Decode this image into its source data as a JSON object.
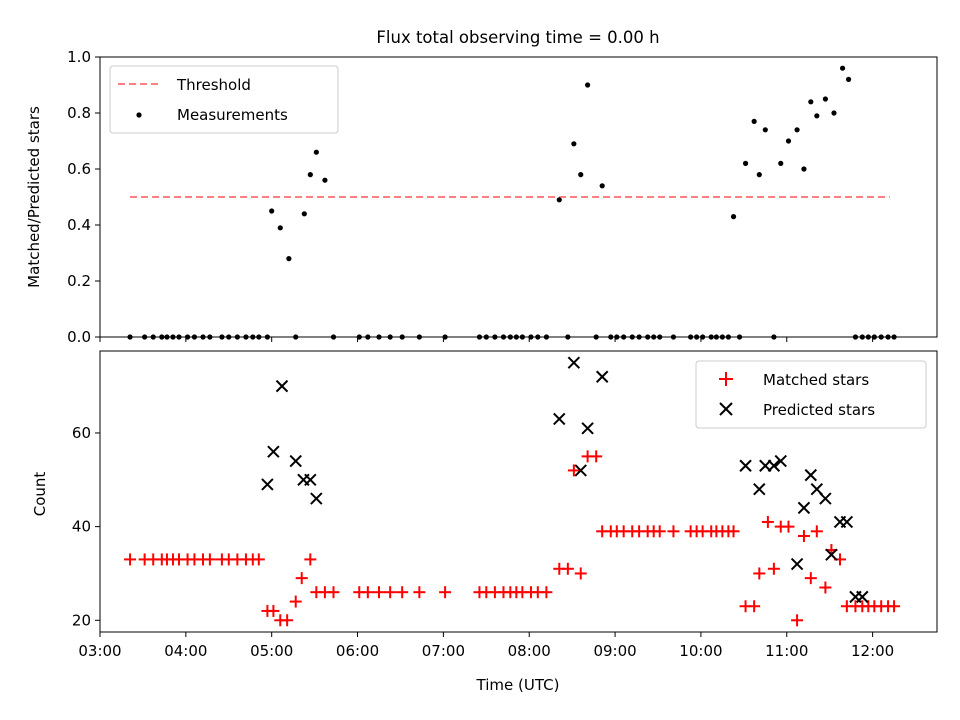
{
  "title": "Flux total observing time = 0.00 h",
  "colors": {
    "threshold": "#ff8080",
    "measurement": "#000000",
    "matched": "#ff0000",
    "predicted": "#000000",
    "axis": "#000000"
  },
  "chart_data": [
    {
      "type": "scatter",
      "ylabel": "Matched/Predicted stars",
      "xlabel": "",
      "xlim": [
        3.0,
        12.75
      ],
      "ylim": [
        0.0,
        1.0
      ],
      "y_ticks": [
        0.0,
        0.2,
        0.4,
        0.6,
        0.8,
        1.0
      ],
      "y_tick_labels": [
        "0.0",
        "0.2",
        "0.4",
        "0.6",
        "0.8",
        "1.0"
      ],
      "x_ticks": [
        3,
        4,
        5,
        6,
        7,
        8,
        9,
        10,
        11,
        12
      ],
      "x_tick_labels": [
        "",
        "",
        "",
        "",
        "",
        "",
        "",
        "",
        "",
        ""
      ],
      "legend": {
        "position": "upper-left",
        "entries": [
          {
            "label": "Threshold",
            "marker": "dashed-line"
          },
          {
            "label": "Measurements",
            "marker": "dot"
          }
        ]
      },
      "threshold": {
        "name": "Threshold",
        "y": 0.5,
        "x": [
          3.35,
          12.2
        ]
      },
      "series": [
        {
          "name": "Measurements",
          "x": [
            3.35,
            3.52,
            3.62,
            3.72,
            3.78,
            3.85,
            3.92,
            4.02,
            4.1,
            4.2,
            4.28,
            4.42,
            4.5,
            4.6,
            4.7,
            4.78,
            4.85,
            4.95,
            5.0,
            5.1,
            5.2,
            5.28,
            5.38,
            5.45,
            5.52,
            5.62,
            5.72,
            6.02,
            6.12,
            6.25,
            6.38,
            6.52,
            6.72,
            7.02,
            7.42,
            7.5,
            7.6,
            7.7,
            7.78,
            7.85,
            7.92,
            8.02,
            8.1,
            8.2,
            8.35,
            8.45,
            8.52,
            8.6,
            8.68,
            8.78,
            8.85,
            8.95,
            9.02,
            9.1,
            9.2,
            9.28,
            9.38,
            9.45,
            9.52,
            9.68,
            9.88,
            9.95,
            10.02,
            10.12,
            10.18,
            10.25,
            10.32,
            10.38,
            10.45,
            10.52,
            10.62,
            10.68,
            10.75,
            10.85,
            10.93,
            11.02,
            11.12,
            11.2,
            11.28,
            11.35,
            11.45,
            11.55,
            11.65,
            11.72,
            11.8,
            11.88,
            11.95,
            12.02,
            12.1,
            12.18,
            12.25
          ],
          "y": [
            0.0,
            0.0,
            0.0,
            0.0,
            0.0,
            0.0,
            0.0,
            0.0,
            0.0,
            0.0,
            0.0,
            0.0,
            0.0,
            0.0,
            0.0,
            0.0,
            0.0,
            0.0,
            0.45,
            0.39,
            0.28,
            0.0,
            0.44,
            0.58,
            0.66,
            0.56,
            0.0,
            0.0,
            0.0,
            0.0,
            0.0,
            0.0,
            0.0,
            0.0,
            0.0,
            0.0,
            0.0,
            0.0,
            0.0,
            0.0,
            0.0,
            0.0,
            0.0,
            0.0,
            0.49,
            0.0,
            0.69,
            0.58,
            0.9,
            0.0,
            0.54,
            0.0,
            0.0,
            0.0,
            0.0,
            0.0,
            0.0,
            0.0,
            0.0,
            0.0,
            0.0,
            0.0,
            0.0,
            0.0,
            0.0,
            0.0,
            0.0,
            0.43,
            0.0,
            0.62,
            0.77,
            0.58,
            0.74,
            0.0,
            0.62,
            0.7,
            0.74,
            0.6,
            0.84,
            0.79,
            0.85,
            0.8,
            0.96,
            0.92,
            0.0,
            0.0,
            0.0,
            0.0,
            0.0,
            0.0,
            0.0
          ]
        }
      ]
    },
    {
      "type": "scatter",
      "ylabel": "Count",
      "xlabel": "Time (UTC)",
      "xlim": [
        3.0,
        12.75
      ],
      "ylim": [
        17.5,
        77.5
      ],
      "y_ticks": [
        20,
        40,
        60
      ],
      "y_tick_labels": [
        "20",
        "40",
        "60"
      ],
      "x_ticks": [
        3,
        4,
        5,
        6,
        7,
        8,
        9,
        10,
        11,
        12
      ],
      "x_tick_labels": [
        "03:00",
        "04:00",
        "05:00",
        "06:00",
        "07:00",
        "08:00",
        "09:00",
        "10:00",
        "11:00",
        "12:00"
      ],
      "legend": {
        "position": "upper-right",
        "entries": [
          {
            "label": "Matched stars",
            "marker": "plus"
          },
          {
            "label": "Predicted stars",
            "marker": "x"
          }
        ]
      },
      "series": [
        {
          "name": "Matched stars",
          "marker": "plus",
          "x": [
            3.35,
            3.52,
            3.62,
            3.72,
            3.78,
            3.85,
            3.92,
            4.02,
            4.1,
            4.2,
            4.28,
            4.42,
            4.5,
            4.6,
            4.7,
            4.78,
            4.85,
            4.95,
            5.02,
            5.1,
            5.18,
            5.28,
            5.35,
            5.45,
            5.52,
            5.62,
            5.72,
            6.02,
            6.12,
            6.25,
            6.38,
            6.52,
            6.72,
            7.02,
            7.42,
            7.5,
            7.6,
            7.7,
            7.78,
            7.85,
            7.92,
            8.02,
            8.1,
            8.2,
            8.35,
            8.45,
            8.52,
            8.6,
            8.68,
            8.78,
            8.85,
            8.95,
            9.02,
            9.1,
            9.2,
            9.28,
            9.38,
            9.45,
            9.52,
            9.68,
            9.88,
            9.95,
            10.02,
            10.12,
            10.18,
            10.25,
            10.32,
            10.38,
            10.52,
            10.62,
            10.68,
            10.78,
            10.85,
            10.93,
            11.02,
            11.12,
            11.2,
            11.28,
            11.35,
            11.45,
            11.52,
            11.62,
            11.7,
            11.8,
            11.88,
            11.95,
            12.02,
            12.1,
            12.18,
            12.25
          ],
          "y": [
            33,
            33,
            33,
            33,
            33,
            33,
            33,
            33,
            33,
            33,
            33,
            33,
            33,
            33,
            33,
            33,
            33,
            22,
            22,
            20,
            20,
            24,
            29,
            33,
            26,
            26,
            26,
            26,
            26,
            26,
            26,
            26,
            26,
            26,
            26,
            26,
            26,
            26,
            26,
            26,
            26,
            26,
            26,
            26,
            31,
            31,
            52,
            30,
            55,
            55,
            39,
            39,
            39,
            39,
            39,
            39,
            39,
            39,
            39,
            39,
            39,
            39,
            39,
            39,
            39,
            39,
            39,
            39,
            23,
            23,
            30,
            41,
            31,
            40,
            40,
            20,
            38,
            29,
            39,
            27,
            35,
            33,
            23,
            23,
            23,
            23,
            23,
            23,
            23,
            23
          ]
        },
        {
          "name": "Predicted stars",
          "marker": "x",
          "x": [
            4.95,
            5.02,
            5.12,
            5.28,
            5.37,
            5.45,
            5.52,
            8.35,
            8.52,
            8.6,
            8.68,
            8.85,
            10.52,
            10.68,
            10.75,
            10.85,
            10.93,
            11.12,
            11.2,
            11.28,
            11.35,
            11.45,
            11.52,
            11.62,
            11.7,
            11.8,
            11.88
          ],
          "y": [
            49,
            56,
            70,
            54,
            50,
            50,
            46,
            63,
            75,
            52,
            61,
            72,
            53,
            48,
            53,
            53,
            54,
            32,
            44,
            51,
            48,
            46,
            34,
            41,
            41,
            25,
            25
          ]
        }
      ]
    }
  ]
}
